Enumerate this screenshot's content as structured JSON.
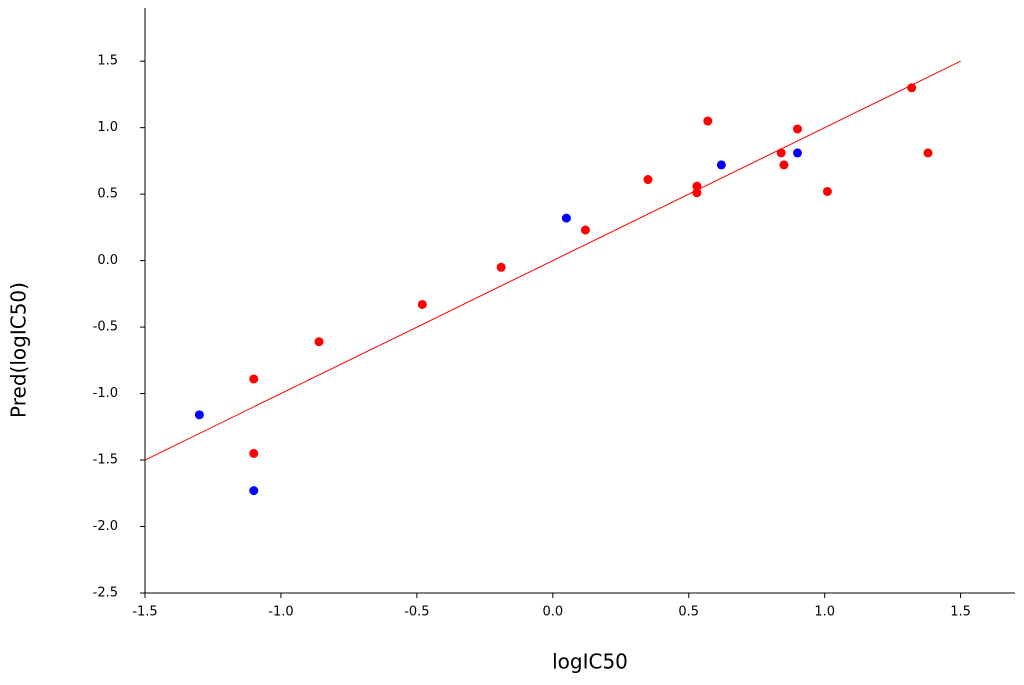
{
  "chart_data": {
    "type": "scatter",
    "x_label": "logIC50",
    "y_label": "Pred(logIC50)",
    "xlim": [
      -1.5,
      1.7
    ],
    "ylim": [
      -2.5,
      1.9
    ],
    "xticks": [
      -1.5,
      {
        "value": -1,
        "label": "-1.0"
      },
      -0.5,
      {
        "value": 0,
        "label": "0.0"
      },
      0.5,
      {
        "value": 1,
        "label": "1.0"
      },
      1.5
    ],
    "yticks": [
      -2.5,
      {
        "value": -2,
        "label": "-2.0"
      },
      -1.5,
      {
        "value": -1,
        "label": "-1.0"
      },
      -0.5,
      {
        "value": 0,
        "label": "0.0"
      },
      0.5,
      {
        "value": 1,
        "label": "1.0"
      },
      1.5
    ],
    "series": [
      {
        "color": "#ff0000",
        "x": [
          -1.1,
          -1.1,
          -0.86,
          -0.48,
          -0.19,
          0.12,
          0.35,
          0.53,
          0.53,
          0.57,
          0.84,
          0.85,
          0.9,
          1.01,
          1.32,
          1.38
        ],
        "values": [
          -0.89,
          -1.45,
          -0.61,
          -0.33,
          -0.05,
          0.23,
          0.61,
          0.56,
          0.51,
          1.05,
          0.81,
          0.72,
          0.99,
          0.52,
          1.3,
          0.81
        ]
      },
      {
        "color": "#0000ff",
        "x": [
          -1.3,
          -1.1,
          0.05,
          0.62,
          0.9
        ],
        "values": [
          -1.16,
          -1.73,
          0.32,
          0.72,
          0.81
        ]
      }
    ],
    "reference_line": {
      "color": "#ff0000",
      "x": [
        -1.5,
        1.5
      ],
      "values": [
        -1.5,
        1.5
      ]
    }
  }
}
